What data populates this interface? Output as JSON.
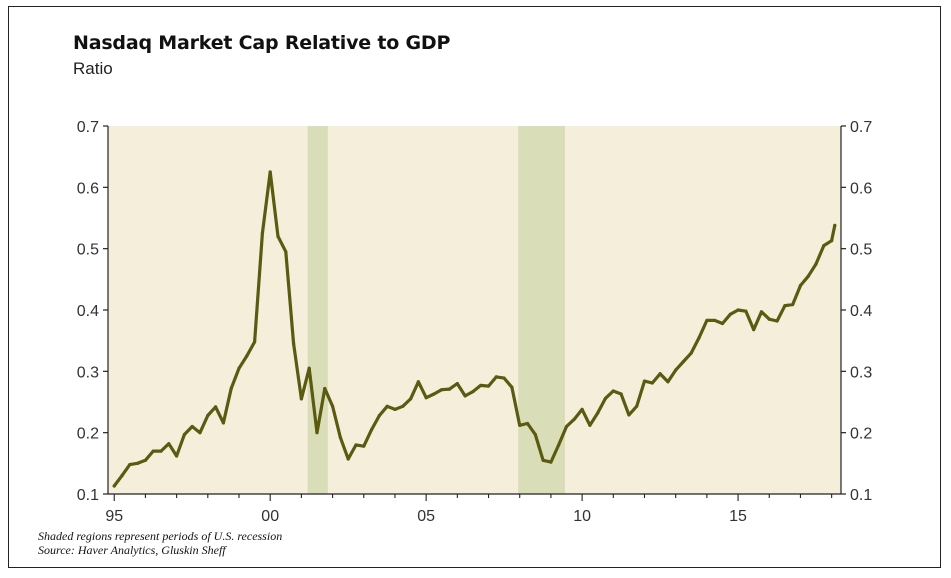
{
  "chart_data": {
    "type": "line",
    "title": "Nasdaq Market Cap Relative to GDP",
    "subtitle": "Ratio",
    "xlabel": "",
    "ylabel": "Ratio",
    "ylim": [
      0.1,
      0.7
    ],
    "yticks": [
      0.1,
      0.2,
      0.3,
      0.4,
      0.5,
      0.6,
      0.7
    ],
    "ytick_labels": [
      "0.1",
      "0.2",
      "0.3",
      "0.4",
      "0.5",
      "0.6",
      "0.7"
    ],
    "xlim": [
      1994.8,
      2018.3
    ],
    "xticks": [
      1995,
      2000,
      2005,
      2010,
      2015
    ],
    "xtick_labels": [
      "95",
      "00",
      "05",
      "10",
      "15"
    ],
    "recessions": [
      [
        2001.2,
        2001.85
      ],
      [
        2007.95,
        2009.45
      ]
    ],
    "colors": {
      "line": "#5a5a10",
      "background": "#f4eedb",
      "recession": "#dadeb8"
    },
    "series": [
      {
        "name": "Nasdaq Market Cap / GDP",
        "x": [
          1995.0,
          1995.25,
          1995.5,
          1995.75,
          1996.0,
          1996.25,
          1996.5,
          1996.75,
          1997.0,
          1997.25,
          1997.5,
          1997.75,
          1998.0,
          1998.25,
          1998.5,
          1998.75,
          1999.0,
          1999.25,
          1999.5,
          1999.75,
          2000.0,
          2000.25,
          2000.5,
          2000.75,
          2001.0,
          2001.25,
          2001.5,
          2001.75,
          2002.0,
          2002.25,
          2002.5,
          2002.75,
          2003.0,
          2003.25,
          2003.5,
          2003.75,
          2004.0,
          2004.25,
          2004.5,
          2004.75,
          2005.0,
          2005.25,
          2005.5,
          2005.75,
          2006.0,
          2006.25,
          2006.5,
          2006.75,
          2007.0,
          2007.25,
          2007.5,
          2007.75,
          2008.0,
          2008.25,
          2008.5,
          2008.75,
          2009.0,
          2009.25,
          2009.5,
          2009.75,
          2010.0,
          2010.25,
          2010.5,
          2010.75,
          2011.0,
          2011.25,
          2011.5,
          2011.75,
          2012.0,
          2012.25,
          2012.5,
          2012.75,
          2013.0,
          2013.25,
          2013.5,
          2013.75,
          2014.0,
          2014.25,
          2014.5,
          2014.75,
          2015.0,
          2015.25,
          2015.5,
          2015.75,
          2016.0,
          2016.25,
          2016.5,
          2016.75,
          2017.0,
          2017.25,
          2017.5,
          2017.75,
          2018.0,
          2018.1
        ],
        "values": [
          0.113,
          0.13,
          0.148,
          0.15,
          0.155,
          0.17,
          0.17,
          0.182,
          0.162,
          0.197,
          0.21,
          0.2,
          0.228,
          0.242,
          0.216,
          0.272,
          0.305,
          0.325,
          0.348,
          0.525,
          0.625,
          0.52,
          0.495,
          0.345,
          0.255,
          0.305,
          0.2,
          0.272,
          0.243,
          0.192,
          0.157,
          0.18,
          0.178,
          0.205,
          0.228,
          0.243,
          0.238,
          0.243,
          0.255,
          0.283,
          0.257,
          0.263,
          0.27,
          0.271,
          0.28,
          0.26,
          0.267,
          0.277,
          0.276,
          0.291,
          0.289,
          0.274,
          0.212,
          0.215,
          0.197,
          0.155,
          0.152,
          0.18,
          0.21,
          0.222,
          0.238,
          0.212,
          0.232,
          0.256,
          0.268,
          0.263,
          0.229,
          0.243,
          0.284,
          0.281,
          0.296,
          0.283,
          0.302,
          0.316,
          0.33,
          0.355,
          0.383,
          0.383,
          0.378,
          0.393,
          0.4,
          0.398,
          0.368,
          0.397,
          0.385,
          0.382,
          0.407,
          0.409,
          0.44,
          0.455,
          0.475,
          0.505,
          0.513,
          0.538
        ]
      }
    ]
  },
  "notes": {
    "line1": "Shaded regions represent periods of U.S. recession",
    "line2": "Source: Haver Analytics, Gluskin Sheff"
  }
}
